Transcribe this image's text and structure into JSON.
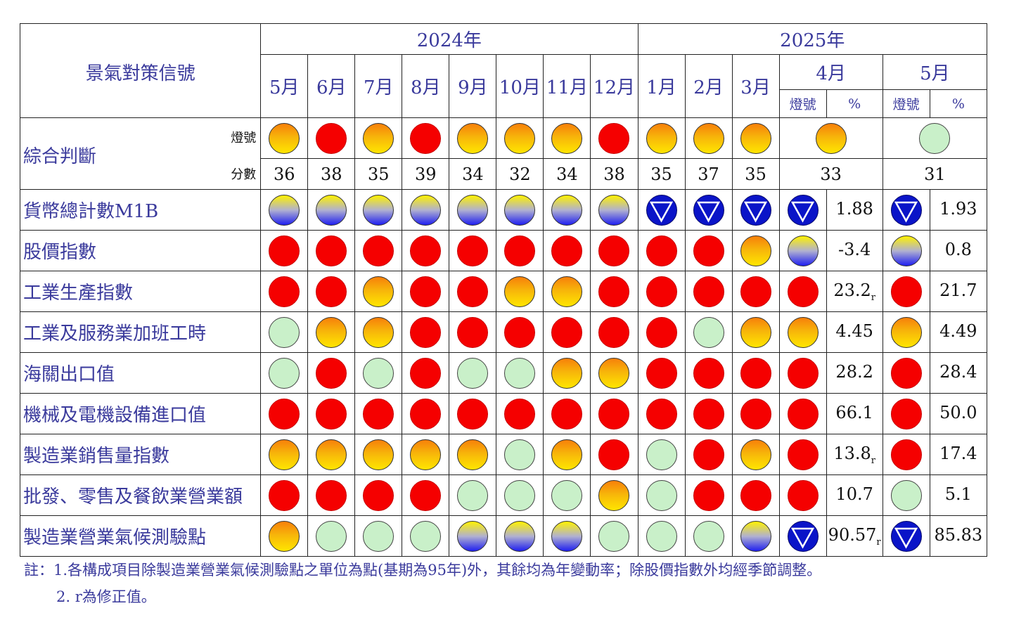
{
  "table": {
    "title": "景氣對策信號",
    "year_2024": "2024年",
    "year_2025": "2025年",
    "months_2024": [
      "5月",
      "6月",
      "7月",
      "8月",
      "9月",
      "10月",
      "11月",
      "12月"
    ],
    "months_2025": [
      "1月",
      "2月",
      "3月",
      "4月",
      "5月"
    ],
    "sub_light": "燈號",
    "sub_pct": "%",
    "composite": {
      "label": "綜合判斷",
      "light_label": "燈號",
      "score_label": "分數",
      "lights": [
        "yellow-red",
        "red",
        "yellow-red",
        "red",
        "yellow-red",
        "yellow-red",
        "yellow-red",
        "red",
        "yellow-red",
        "yellow-red",
        "yellow-red",
        "yellow-red",
        "green"
      ],
      "scores": [
        "36",
        "38",
        "35",
        "39",
        "34",
        "32",
        "34",
        "38",
        "35",
        "37",
        "35",
        "33",
        "31"
      ]
    },
    "indicators": [
      {
        "label": "貨幣總計數M1B",
        "lights": [
          "yellow-blue",
          "yellow-blue",
          "yellow-blue",
          "yellow-blue",
          "yellow-blue",
          "yellow-blue",
          "yellow-blue",
          "yellow-blue",
          "blue",
          "blue",
          "blue",
          "blue",
          "blue"
        ],
        "apr_value": "1.88",
        "apr_rev": "",
        "may_value": "1.93",
        "may_rev": ""
      },
      {
        "label": "股價指數",
        "lights": [
          "red",
          "red",
          "red",
          "red",
          "red",
          "red",
          "red",
          "red",
          "red",
          "red",
          "yellow-red",
          "yellow-blue",
          "yellow-blue"
        ],
        "apr_value": "-3.4",
        "apr_rev": "",
        "may_value": "0.8",
        "may_rev": ""
      },
      {
        "label": "工業生產指數",
        "lights": [
          "red",
          "red",
          "yellow-red",
          "red",
          "red",
          "yellow-red",
          "yellow-red",
          "red",
          "red",
          "red",
          "red",
          "red",
          "red"
        ],
        "apr_value": "23.2",
        "apr_rev": "r",
        "may_value": "21.7",
        "may_rev": ""
      },
      {
        "label": "工業及服務業加班工時",
        "lights": [
          "green",
          "yellow-red",
          "yellow-red",
          "red",
          "red",
          "red",
          "red",
          "red",
          "red",
          "green",
          "yellow-red",
          "yellow-red",
          "yellow-red"
        ],
        "apr_value": "4.45",
        "apr_rev": "",
        "may_value": "4.49",
        "may_rev": ""
      },
      {
        "label": "海關出口值",
        "lights": [
          "green",
          "red",
          "green",
          "red",
          "green",
          "green",
          "yellow-red",
          "yellow-red",
          "red",
          "red",
          "red",
          "red",
          "red"
        ],
        "apr_value": "28.2",
        "apr_rev": "",
        "may_value": "28.4",
        "may_rev": ""
      },
      {
        "label": "機械及電機設備進口值",
        "lights": [
          "red",
          "red",
          "red",
          "red",
          "red",
          "red",
          "red",
          "red",
          "red",
          "red",
          "red",
          "red",
          "red"
        ],
        "apr_value": "66.1",
        "apr_rev": "",
        "may_value": "50.0",
        "may_rev": ""
      },
      {
        "label": "製造業銷售量指數",
        "lights": [
          "yellow-red",
          "yellow-red",
          "yellow-red",
          "yellow-red",
          "yellow-red",
          "green",
          "yellow-red",
          "red",
          "green",
          "red",
          "yellow-red",
          "red",
          "red"
        ],
        "apr_value": "13.8",
        "apr_rev": "r",
        "may_value": "17.4",
        "may_rev": ""
      },
      {
        "label": "批發、零售及餐飲業營業額",
        "lights": [
          "red",
          "red",
          "red",
          "red",
          "green",
          "green",
          "green",
          "yellow-red",
          "green",
          "red",
          "red",
          "red",
          "green"
        ],
        "apr_value": "10.7",
        "apr_rev": "",
        "may_value": "5.1",
        "may_rev": ""
      },
      {
        "label": "製造業營業氣候測驗點",
        "lights": [
          "yellow-red",
          "green",
          "green",
          "green",
          "yellow-blue",
          "yellow-blue",
          "yellow-blue",
          "green",
          "green",
          "green",
          "yellow-blue",
          "blue",
          "blue"
        ],
        "apr_value": "90.57",
        "apr_rev": "r",
        "may_value": "85.83",
        "may_rev": ""
      }
    ],
    "light_colors": {
      "red": "#f50000",
      "yellow-red": "#f7a00a",
      "green": "#c9f0c9",
      "yellow-blue": "#8080e0",
      "blue": "#0a14c8"
    }
  },
  "notes": {
    "note1": "註：1.各構成項目除製造業營業氣候測驗點之單位為點(基期為95年)外，其餘均為年變動率；除股價指數外均經季節調整。",
    "note2": "2. r為修正值。"
  }
}
